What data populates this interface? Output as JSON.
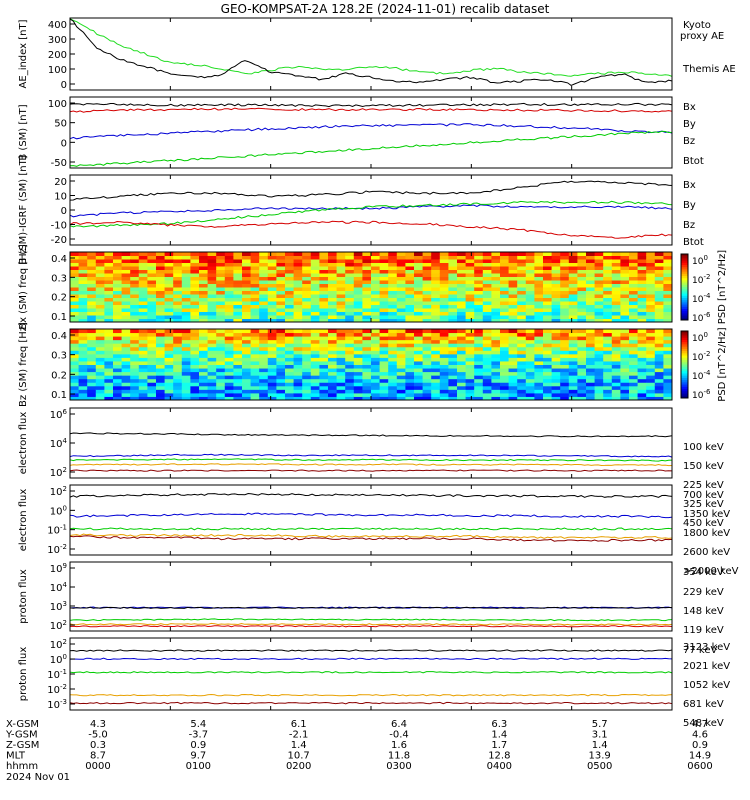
{
  "title": "GEO-KOMPSAT-2A 128.2E (2024-11-01) recalib dataset",
  "colors": {
    "black": "#000000",
    "red": "#d40000",
    "green": "#00cc00",
    "blue": "#0000d4",
    "cyan": "#00c8c8",
    "orange": "#e8a000",
    "maroon": "#8b0000",
    "bright_green": "#22dd22"
  },
  "chart_data": [
    {
      "type": "line",
      "ylabel": "AE_index [nT]",
      "ylim": [
        0,
        400
      ],
      "yticks": [
        "400",
        "300",
        "200",
        "100",
        "0"
      ],
      "series": [
        {
          "name": "Kyoto proxy AE",
          "color": "#22dd22",
          "values": [
            400,
            320,
            250,
            200,
            150,
            140,
            120,
            90,
            110,
            130,
            120,
            110,
            130,
            120,
            100,
            90,
            110,
            120,
            100,
            90,
            80,
            90,
            100,
            90,
            80
          ]
        },
        {
          "name": "Themis AE",
          "color": "#000000",
          "values": [
            400,
            240,
            170,
            130,
            90,
            70,
            80,
            170,
            100,
            80,
            60,
            90,
            70,
            50,
            40,
            60,
            70,
            40,
            50,
            60,
            30,
            70,
            90,
            40,
            50
          ]
        }
      ]
    },
    {
      "type": "line",
      "ylabel": "B (SM) [nT]",
      "ylim": [
        -60,
        130
      ],
      "yticks": [
        "100",
        "50",
        "0",
        "-50"
      ],
      "series": [
        {
          "name": "Bx",
          "color": "#0000d4",
          "values": [
            20,
            27,
            33,
            39,
            45,
            50,
            53,
            55,
            56,
            52,
            47,
            40,
            35
          ]
        },
        {
          "name": "By",
          "color": "#00cc00",
          "values": [
            -55,
            -48,
            -40,
            -32,
            -24,
            -16,
            -8,
            0,
            8,
            16,
            24,
            32,
            38
          ]
        },
        {
          "name": "Bz",
          "color": "#d40000",
          "values": [
            90,
            95,
            96,
            98,
            97,
            96,
            96,
            97,
            96,
            95,
            94,
            93,
            92
          ]
        },
        {
          "name": "Btot",
          "color": "#000000",
          "values": [
            110,
            110,
            108,
            109,
            108,
            107,
            107,
            108,
            109,
            110,
            110,
            110,
            110
          ]
        }
      ]
    },
    {
      "type": "line",
      "ylabel": "B (SM)-IGRF (SM) [nT]",
      "ylim": [
        -22,
        24
      ],
      "yticks": [
        "20",
        "10",
        "0",
        "-10",
        "-20"
      ],
      "series": [
        {
          "name": "Bx",
          "color": "#0000d4",
          "values": [
            -3,
            -1,
            0,
            1,
            2,
            2,
            2,
            3,
            4,
            3,
            3,
            3,
            2
          ]
        },
        {
          "name": "By",
          "color": "#00cc00",
          "values": [
            -10,
            -9,
            -8,
            -5,
            -2,
            1,
            3,
            4,
            5,
            6,
            6,
            6,
            5
          ]
        },
        {
          "name": "Bz",
          "color": "#d40000",
          "values": [
            -8,
            -7,
            -9,
            -10,
            -8,
            -7,
            -7,
            -8,
            -10,
            -12,
            -16,
            -17,
            -15
          ]
        },
        {
          "name": "Btot",
          "color": "#000000",
          "values": [
            8,
            10,
            12,
            12,
            10,
            11,
            13,
            12,
            12,
            16,
            20,
            19,
            17
          ]
        }
      ]
    },
    {
      "type": "heatmap",
      "ylabel": "Bx (SM) freq [Hz]",
      "ylim": [
        0.05,
        0.5
      ],
      "yticks": [
        "0.4",
        "0.3",
        "0.2",
        "0.1"
      ],
      "colorbar": {
        "label": "PSD [nT^2/Hz]",
        "ticks": [
          "10^0",
          "10^-2",
          "10^-4",
          "10^-6"
        ]
      }
    },
    {
      "type": "heatmap",
      "ylabel": "Bz (SM) freq [Hz]",
      "ylim": [
        0.05,
        0.5
      ],
      "yticks": [
        "0.4",
        "0.3",
        "0.2",
        "0.1"
      ],
      "colorbar": {
        "label": "PSD [nT^2/Hz]",
        "ticks": [
          "10^0",
          "10^-2",
          "10^-4",
          "10^-6"
        ]
      }
    },
    {
      "type": "line",
      "ylabel": "electron flux",
      "log": true,
      "ylim": [
        10,
        100000000
      ],
      "yticks": [
        "10^6",
        "10^4",
        "10^2"
      ],
      "series": [
        {
          "name": "100 keV",
          "color": "#000000",
          "values": [
            300000,
            280000,
            250000,
            220000,
            200000,
            190000,
            180000,
            170000,
            160000,
            150000,
            150000,
            150000,
            150000
          ]
        },
        {
          "name": "150 keV",
          "color": "#0000d4",
          "values": [
            1500,
            1700,
            2000,
            2100,
            1900,
            1800,
            1900,
            1800,
            1900,
            1700,
            1600,
            1500,
            1400
          ]
        },
        {
          "name": "225 keV",
          "color": "#00cc00",
          "values": [
            600,
            650,
            700,
            750,
            700,
            650,
            700,
            650,
            600,
            620,
            600,
            580,
            560
          ]
        },
        {
          "name": "325 keV",
          "color": "#e8a000",
          "values": [
            200,
            220,
            230,
            240,
            230,
            220,
            230,
            220,
            210,
            220,
            210,
            200,
            200
          ]
        },
        {
          "name": "450 keV",
          "color": "#8b0000",
          "values": [
            55,
            55,
            55,
            55,
            55,
            55,
            55,
            55,
            55,
            55,
            55,
            55,
            55
          ]
        }
      ]
    },
    {
      "type": "line",
      "ylabel": "electron flux",
      "log": true,
      "ylim": [
        0.005,
        100
      ],
      "yticks": [
        "10^2",
        "10^0",
        "10^-1",
        "10^-2"
      ],
      "series": [
        {
          "name": "700 keV",
          "color": "#000000",
          "values": [
            20,
            22,
            25,
            26,
            27,
            25,
            24,
            23,
            22,
            21,
            20,
            20,
            20
          ]
        },
        {
          "name": "1350 keV",
          "color": "#0000d4",
          "values": [
            1.2,
            1.3,
            1.5,
            1.6,
            1.7,
            1.5,
            1.4,
            1.4,
            1.3,
            1.3,
            1.2,
            1.2,
            1.1
          ]
        },
        {
          "name": "1800 keV",
          "color": "#00cc00",
          "values": [
            0.2,
            0.2,
            0.2,
            0.2,
            0.2,
            0.2,
            0.2,
            0.2,
            0.2,
            0.2,
            0.2,
            0.2,
            0.2
          ]
        },
        {
          "name": "2600 keV",
          "color": "#e8a000",
          "values": [
            0.09,
            0.08,
            0.08,
            0.08,
            0.08,
            0.07,
            0.07,
            0.07,
            0.07,
            0.06,
            0.06,
            0.06,
            0.06
          ]
        },
        {
          "name": ">2000 keV",
          "color": "#8b0000",
          "values": [
            0.07,
            0.06,
            0.06,
            0.05,
            0.05,
            0.05,
            0.05,
            0.05,
            0.05,
            0.04,
            0.04,
            0.04,
            0.04
          ]
        }
      ]
    },
    {
      "type": "line",
      "ylabel": "proton flux",
      "log": true,
      "ylim": [
        50,
        1000000000
      ],
      "yticks": [
        "10^9",
        "10^4",
        "10^3",
        "10^2"
      ],
      "series": [
        {
          "name": "354 keV",
          "color": "#d40000",
          "values": [
            160,
            160,
            160,
            160,
            160,
            160,
            160,
            160,
            160,
            160,
            160,
            160,
            160
          ]
        },
        {
          "name": "229 keV",
          "color": "#e8a000",
          "values": [
            250,
            260,
            270,
            280,
            270,
            260,
            260,
            260,
            250,
            250,
            240,
            240,
            240
          ]
        },
        {
          "name": "148 keV",
          "color": "#00cc00",
          "values": [
            700,
            750,
            800,
            850,
            850,
            800,
            800,
            800,
            750,
            750,
            700,
            700,
            700
          ]
        },
        {
          "name": "119 keV",
          "color": "#0000d4",
          "values": [
            15000,
            15000,
            15000,
            15000,
            15000,
            15000,
            15000,
            15000,
            15000,
            15000,
            15000,
            15000,
            15000
          ]
        },
        {
          "name": "77 keV",
          "color": "#000000",
          "values": [
            14000,
            14000,
            14000,
            14000,
            14000,
            14000,
            14000,
            14000,
            14000,
            14000,
            14000,
            14000,
            14000
          ]
        }
      ]
    },
    {
      "type": "line",
      "ylabel": "proton flux",
      "log": true,
      "ylim": [
        0.0005,
        1000
      ],
      "yticks": [
        "10^2",
        "10^0",
        "10^-1",
        "10^-2",
        "10^-3"
      ],
      "series": [
        {
          "name": "3123 keV",
          "color": "#8b0000",
          "values": [
            0.002,
            0.002,
            0.002,
            0.002,
            0.002,
            0.002,
            0.002,
            0.002,
            0.002,
            0.002,
            0.002,
            0.002,
            0.002
          ]
        },
        {
          "name": "2021 keV",
          "color": "#e8a000",
          "values": [
            0.01,
            0.01,
            0.01,
            0.01,
            0.01,
            0.01,
            0.01,
            0.01,
            0.01,
            0.01,
            0.01,
            0.01,
            0.01
          ]
        },
        {
          "name": "1052 keV",
          "color": "#00cc00",
          "values": [
            1,
            1,
            1,
            1,
            1,
            1,
            1,
            1,
            1,
            1,
            1,
            1,
            1
          ]
        },
        {
          "name": "681 keV",
          "color": "#0000d4",
          "values": [
            15,
            15,
            15,
            15,
            15,
            15,
            15,
            15,
            15,
            15,
            15,
            15,
            15
          ]
        },
        {
          "name": "548 keV",
          "color": "#000000",
          "values": [
            80,
            80,
            80,
            80,
            80,
            80,
            80,
            80,
            80,
            80,
            80,
            80,
            80
          ]
        }
      ]
    }
  ],
  "ephemeris": {
    "rows": [
      {
        "label": "X-GSM",
        "values": [
          "4.3",
          "5.4",
          "6.1",
          "6.4",
          "6.3",
          "5.7",
          "4.7"
        ]
      },
      {
        "label": "Y-GSM",
        "values": [
          "-5.0",
          "-3.7",
          "-2.1",
          "-0.4",
          "1.4",
          "3.1",
          "4.6"
        ]
      },
      {
        "label": "Z-GSM",
        "values": [
          "0.3",
          "0.9",
          "1.4",
          "1.6",
          "1.7",
          "1.4",
          "0.9"
        ]
      },
      {
        "label": "MLT",
        "values": [
          "8.7",
          "9.7",
          "10.7",
          "11.8",
          "12.8",
          "13.9",
          "14.9"
        ]
      },
      {
        "label": "hhmm",
        "values": [
          "0000",
          "0100",
          "0200",
          "0300",
          "0400",
          "0500",
          "0600"
        ]
      }
    ],
    "date": "2024 Nov 01"
  }
}
